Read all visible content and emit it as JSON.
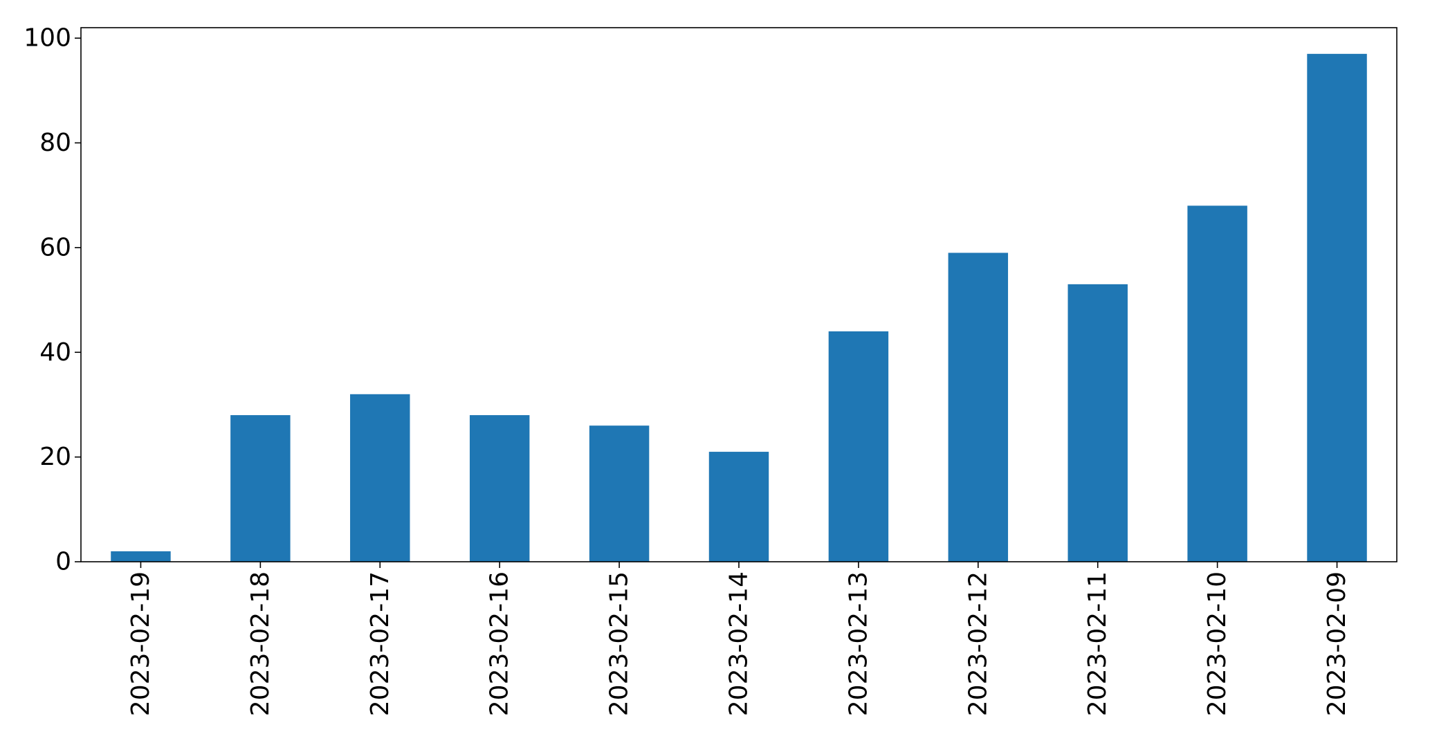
{
  "chart_data": {
    "type": "bar",
    "title": "",
    "xlabel": "",
    "ylabel": "",
    "categories": [
      "2023-02-19",
      "2023-02-18",
      "2023-02-17",
      "2023-02-16",
      "2023-02-15",
      "2023-02-14",
      "2023-02-13",
      "2023-02-12",
      "2023-02-11",
      "2023-02-10",
      "2023-02-09"
    ],
    "values": [
      2,
      28,
      32,
      28,
      26,
      21,
      44,
      59,
      53,
      68,
      97
    ],
    "ylim": [
      0,
      102
    ],
    "yticks": [
      0,
      20,
      40,
      60,
      80,
      100
    ],
    "bar_color": "#1f77b4",
    "grid": false,
    "legend": "none"
  }
}
